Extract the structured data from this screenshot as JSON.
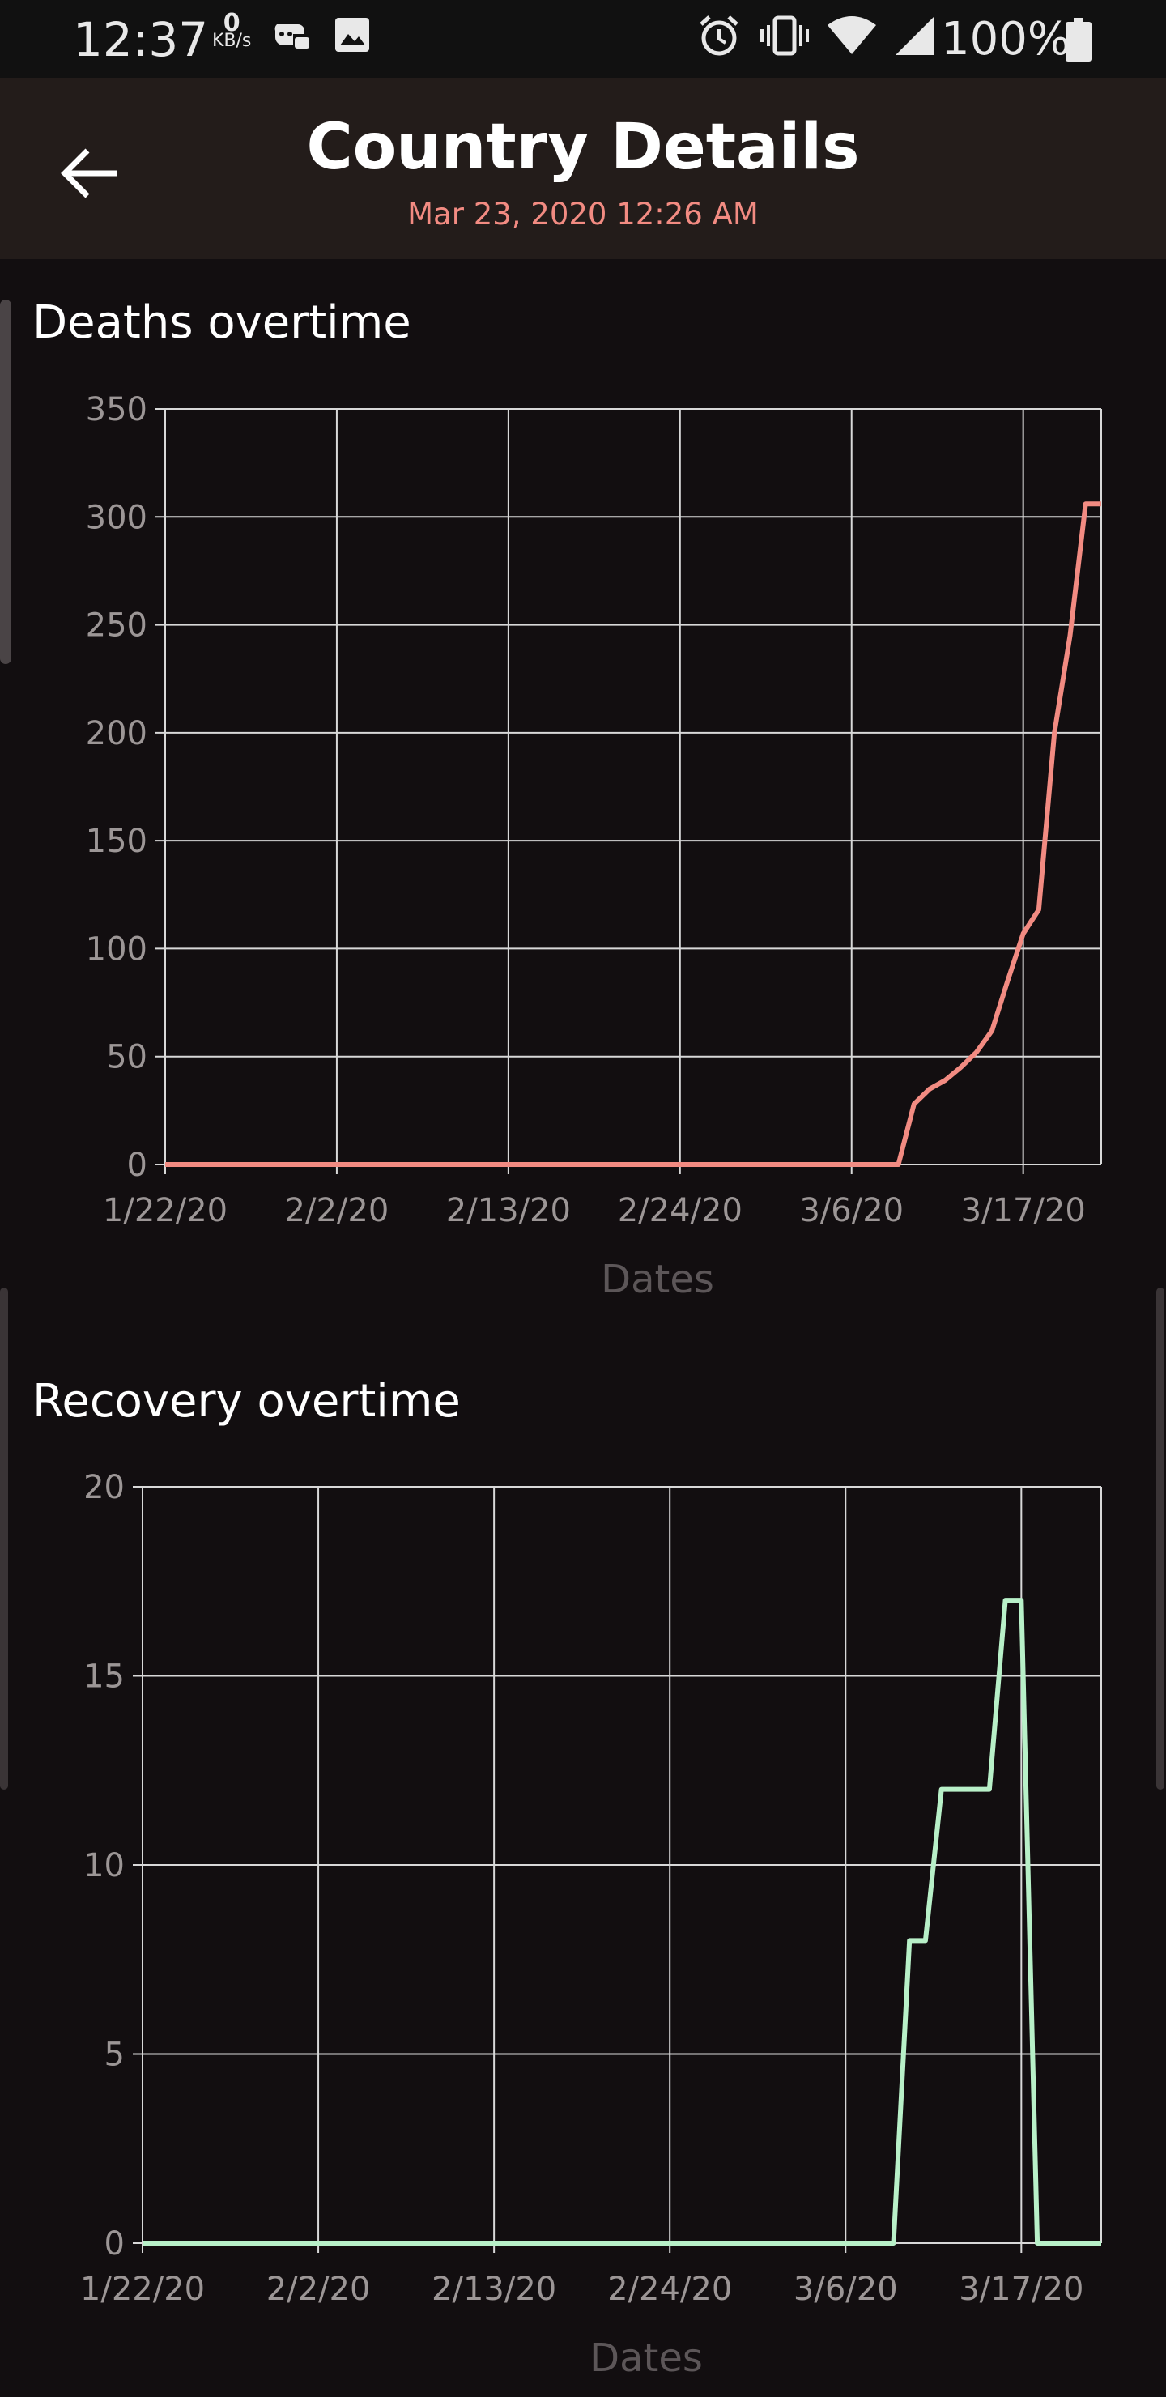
{
  "status_bar": {
    "time": "12:37",
    "net_speed_value": "0",
    "net_speed_unit": "KB/s",
    "battery": "100%",
    "icons": [
      "gamepad-icon",
      "image-icon",
      "alarm-icon",
      "vibrate-icon",
      "wifi-icon",
      "signal-icon",
      "battery-icon"
    ]
  },
  "app_bar": {
    "title": "Country Details",
    "subtitle": "Mar 23, 2020 12:26 AM",
    "back_icon": "arrow-left-icon"
  },
  "colors": {
    "background": "#120e10",
    "app_bar": "#231c1a",
    "deaths_line": "#f28b82",
    "recovery_line": "#b8f0c8",
    "subtitle": "#f28b82"
  },
  "deaths": {
    "title": "Deaths overtime"
  },
  "recovery": {
    "title": "Recovery overtime"
  },
  "chart_data": [
    {
      "type": "line",
      "title": "Deaths overtime",
      "xlabel": "Dates",
      "ylabel": "",
      "x_tick_labels": [
        "1/22/20",
        "2/2/20",
        "2/13/20",
        "2/24/20",
        "3/6/20",
        "3/17/20"
      ],
      "y_tick_labels": [
        "0",
        "50",
        "100",
        "150",
        "200",
        "250",
        "300",
        "350"
      ],
      "ylim": [
        0,
        350
      ],
      "xlim": [
        "1/22/20",
        "3/22/20"
      ],
      "grid": true,
      "series": [
        {
          "color": "#f28b82",
          "x": [
            "1/22/20",
            "3/9/20",
            "3/10/20",
            "3/11/20",
            "3/12/20",
            "3/13/20",
            "3/14/20",
            "3/15/20",
            "3/16/20",
            "3/17/20",
            "3/18/20",
            "3/19/20",
            "3/20/20",
            "3/21/20",
            "3/22/20"
          ],
          "y": [
            0,
            0,
            28,
            35,
            39,
            45,
            52,
            62,
            85,
            107,
            118,
            200,
            245,
            306,
            306
          ]
        }
      ]
    },
    {
      "type": "line",
      "title": "Recovery overtime",
      "xlabel": "Dates",
      "ylabel": "",
      "x_tick_labels": [
        "1/22/20",
        "2/2/20",
        "2/13/20",
        "2/24/20",
        "3/6/20",
        "3/17/20"
      ],
      "y_tick_labels": [
        "0",
        "5",
        "10",
        "15",
        "20"
      ],
      "ylim": [
        0,
        20
      ],
      "xlim": [
        "1/22/20",
        "3/22/20"
      ],
      "grid": true,
      "series": [
        {
          "color": "#b8f0c8",
          "x": [
            "1/22/20",
            "3/9/20",
            "3/10/20",
            "3/11/20",
            "3/12/20",
            "3/13/20",
            "3/14/20",
            "3/15/20",
            "3/16/20",
            "3/17/20",
            "3/18/20",
            "3/19/20",
            "3/20/20",
            "3/21/20",
            "3/22/20"
          ],
          "y": [
            0,
            0,
            8,
            8,
            12,
            12,
            12,
            12,
            17,
            17,
            0,
            0,
            0,
            0,
            0
          ]
        }
      ]
    }
  ]
}
